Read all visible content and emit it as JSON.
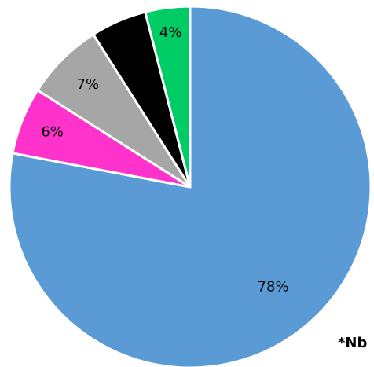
{
  "chart_data": {
    "type": "pie",
    "start": "12 o'clock",
    "direction": "clockwise",
    "slices": [
      {
        "value": 78,
        "label": "78%",
        "color": "#5b9bd5"
      },
      {
        "value": 6,
        "label": "6%",
        "color": "#ff33cc"
      },
      {
        "value": 7,
        "label": "7%",
        "color": "#a6a6a6"
      },
      {
        "value": 5,
        "label": "5%",
        "color": "#000000"
      },
      {
        "value": 4,
        "label": "4%",
        "color": "#00cc66"
      }
    ],
    "slice_border_color": "#ffffff",
    "footnote": "*Nb"
  }
}
